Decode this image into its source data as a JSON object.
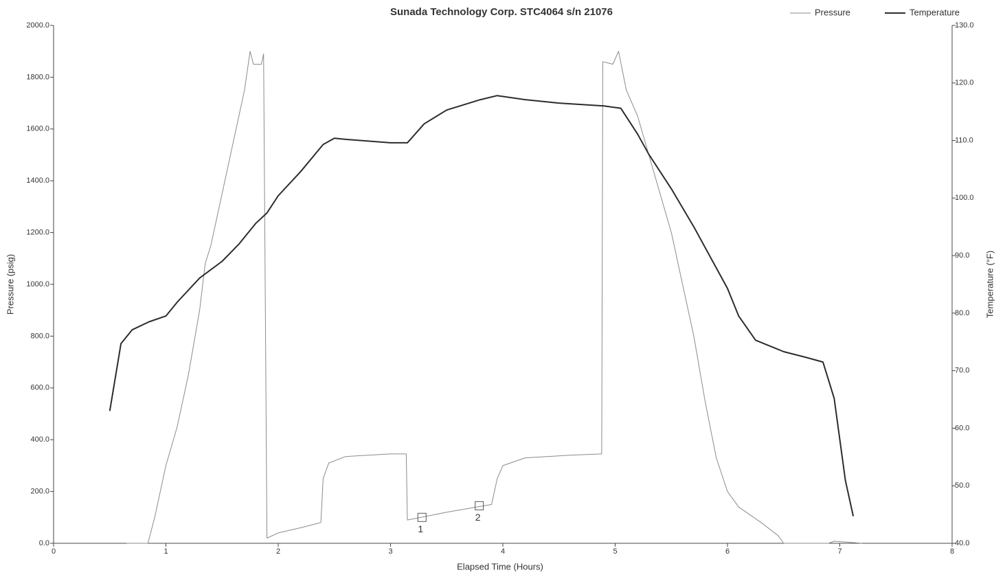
{
  "chart_data": {
    "type": "line",
    "title": "Sunada Technology Corp. STC4064 s/n 21076",
    "x_label": "Elapsed Time (Hours)",
    "y_label": "Pressure (psig)",
    "y2_label": "Temperature (°F)",
    "xlim": [
      0,
      8
    ],
    "xticks": [
      0,
      1,
      2,
      3,
      4,
      5,
      6,
      7,
      8
    ],
    "ylim": [
      0,
      2000
    ],
    "yticks": [
      {
        "value": 0,
        "label": "0.0"
      },
      {
        "value": 200,
        "label": "200.0"
      },
      {
        "value": 400,
        "label": "400.0"
      },
      {
        "value": 600,
        "label": "600.0"
      },
      {
        "value": 800,
        "label": "800.0"
      },
      {
        "value": 1000,
        "label": "1000.0"
      },
      {
        "value": 1200,
        "label": "1200.0"
      },
      {
        "value": 1400,
        "label": "1400.0"
      },
      {
        "value": 1600,
        "label": "1600.0"
      },
      {
        "value": 1800,
        "label": "1800.0"
      },
      {
        "value": 2000,
        "label": "2000.0"
      }
    ],
    "y2lim": [
      40,
      130
    ],
    "y2ticks": [
      {
        "value": 40,
        "label": "40.0"
      },
      {
        "value": 50,
        "label": "50.0"
      },
      {
        "value": 60,
        "label": "60.0"
      },
      {
        "value": 70,
        "label": "70.0"
      },
      {
        "value": 80,
        "label": "80.0"
      },
      {
        "value": 90,
        "label": "90.0"
      },
      {
        "value": 100,
        "label": "100.0"
      },
      {
        "value": 110,
        "label": "110.0"
      },
      {
        "value": 120,
        "label": "120.0"
      },
      {
        "value": 130,
        "label": "130.0"
      }
    ],
    "legend": "top-right",
    "series": [
      {
        "name": "Pressure",
        "color": "#8a8a8a",
        "axis": "y",
        "x": [
          0.65,
          0.84,
          0.9,
          1.0,
          1.1,
          1.2,
          1.3,
          1.35,
          1.4,
          1.5,
          1.6,
          1.7,
          1.75,
          1.78,
          1.85,
          1.87,
          1.9,
          2.0,
          2.2,
          2.38,
          2.4,
          2.45,
          2.6,
          3.0,
          3.14,
          3.15,
          3.5,
          3.9,
          3.95,
          4.0,
          4.2,
          4.6,
          4.88,
          4.89,
          4.98,
          5.03,
          5.1,
          5.2,
          5.3,
          5.4,
          5.5,
          5.6,
          5.7,
          5.8,
          5.9,
          6.0,
          6.1,
          6.3,
          6.45,
          6.5,
          6.9,
          6.95,
          7.05,
          7.2
        ],
        "values": [
          0,
          0,
          100,
          300,
          450,
          650,
          900,
          1080,
          1150,
          1350,
          1550,
          1750,
          1900,
          1850,
          1850,
          1890,
          20,
          40,
          60,
          80,
          250,
          310,
          335,
          345,
          345,
          90,
          120,
          150,
          250,
          300,
          330,
          340,
          345,
          1860,
          1850,
          1900,
          1750,
          1650,
          1500,
          1350,
          1200,
          1000,
          800,
          550,
          330,
          200,
          140,
          80,
          30,
          0,
          0,
          8,
          5,
          0
        ]
      },
      {
        "name": "Temperature",
        "color": "#2b2b2b",
        "axis": "y2",
        "x": [
          0.5,
          0.6,
          0.7,
          0.85,
          1.0,
          1.1,
          1.3,
          1.5,
          1.65,
          1.8,
          1.9,
          2.0,
          2.2,
          2.4,
          2.5,
          2.6,
          3.0,
          3.15,
          3.3,
          3.5,
          3.8,
          3.95,
          4.2,
          4.5,
          4.9,
          5.05,
          5.2,
          5.3,
          5.5,
          5.7,
          6.0,
          6.1,
          6.25,
          6.5,
          6.7,
          6.85,
          6.95,
          7.05,
          7.12
        ],
        "values": [
          63.0,
          74.7,
          77.1,
          78.5,
          79.5,
          81.9,
          86.1,
          89.0,
          92.0,
          95.6,
          97.4,
          100.4,
          104.6,
          109.3,
          110.4,
          110.2,
          109.6,
          109.6,
          112.9,
          115.3,
          117.1,
          117.8,
          117.1,
          116.5,
          116.0,
          115.6,
          111.1,
          107.6,
          101.6,
          95.0,
          84.3,
          79.5,
          75.3,
          73.3,
          72.3,
          71.5,
          65.2,
          50.9,
          44.7
        ]
      }
    ],
    "annotations": [
      {
        "x": 3.28,
        "y": 100,
        "label": "1"
      },
      {
        "x": 3.79,
        "y": 145,
        "label": "2"
      }
    ]
  }
}
